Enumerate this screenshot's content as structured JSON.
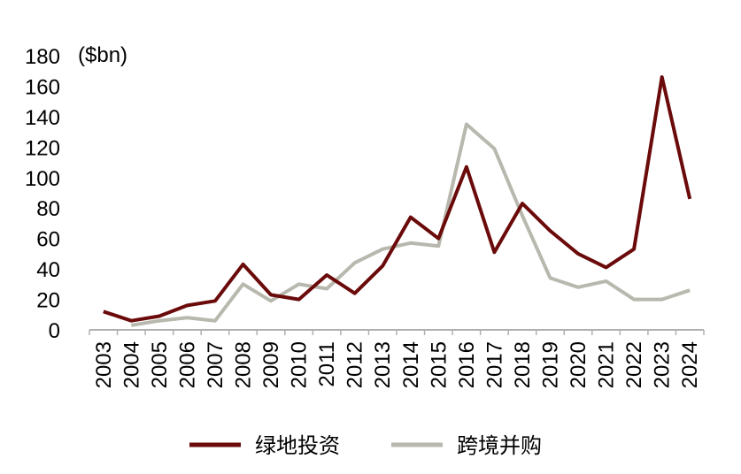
{
  "chart_data": {
    "type": "line",
    "unit_label": "($bn)",
    "categories": [
      "2003",
      "2004",
      "2005",
      "2006",
      "2007",
      "2008",
      "2009",
      "2010",
      "2011",
      "2012",
      "2013",
      "2014",
      "2015",
      "2016",
      "2017",
      "2018",
      "2019",
      "2020",
      "2021",
      "2022",
      "2023",
      "2024"
    ],
    "yticks": [
      "0",
      "20",
      "40",
      "60",
      "80",
      "100",
      "120",
      "140",
      "160",
      "180"
    ],
    "ylim": [
      0,
      180
    ],
    "series": [
      {
        "name": "绿地投资",
        "color": "#6b0a0a",
        "values": [
          12,
          6,
          9,
          16,
          19,
          43,
          23,
          20,
          36,
          24,
          42,
          74,
          60,
          107,
          51,
          83,
          65,
          50,
          41,
          53,
          166,
          86
        ]
      },
      {
        "name": "跨境并购",
        "color": "#b8b8ae",
        "values": [
          null,
          3,
          6,
          8,
          6,
          30,
          19,
          30,
          27,
          44,
          53,
          57,
          55,
          135,
          119,
          75,
          34,
          28,
          32,
          20,
          20,
          26
        ]
      }
    ],
    "legend_position": "bottom",
    "grid": false
  }
}
